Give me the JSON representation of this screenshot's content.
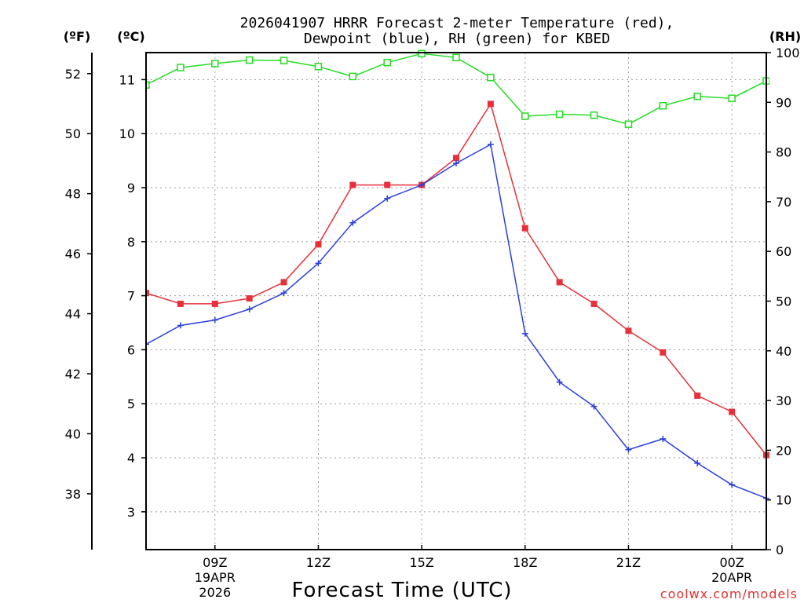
{
  "chart_data": {
    "type": "line",
    "title_line1": "2026041907 HRRR Forecast 2-meter Temperature (red),",
    "title_line2": "Dewpoint (blue), RH (green) for KBED",
    "xlabel": "Forecast Time (UTC)",
    "credit": "coolwx.com/models",
    "unit_labels": {
      "fahrenheit": "(ºF)",
      "celsius": "(ºC)",
      "rh": "(RH)"
    },
    "x": [
      7,
      8,
      9,
      10,
      11,
      12,
      13,
      14,
      15,
      16,
      17,
      18,
      19,
      20,
      21,
      22,
      23,
      24,
      25
    ],
    "x_ticks": [
      {
        "hour": 9,
        "label": "09Z",
        "line2": "19APR",
        "line3": "2026"
      },
      {
        "hour": 12,
        "label": "12Z",
        "line2": "",
        "line3": ""
      },
      {
        "hour": 15,
        "label": "15Z",
        "line2": "",
        "line3": ""
      },
      {
        "hour": 18,
        "label": "18Z",
        "line2": "",
        "line3": ""
      },
      {
        "hour": 21,
        "label": "21Z",
        "line2": "",
        "line3": ""
      },
      {
        "hour": 24,
        "label": "00Z",
        "line2": "20APR",
        "line3": ""
      }
    ],
    "xlim": [
      7,
      25
    ],
    "celsius_axis": {
      "ylim": [
        2.3,
        11.5
      ],
      "ticks": [
        3,
        4,
        5,
        6,
        7,
        8,
        9,
        10,
        11
      ]
    },
    "fahrenheit_ticks": [
      38,
      40,
      42,
      44,
      46,
      48,
      50,
      52
    ],
    "rh_axis": {
      "ylim": [
        0,
        100
      ],
      "ticks": [
        0,
        10,
        20,
        30,
        40,
        50,
        60,
        70,
        80,
        90,
        100
      ]
    },
    "series": [
      {
        "name": "Temperature",
        "axis": "celsius",
        "color": "#e8303a",
        "marker": "filled-square",
        "values": [
          7.05,
          6.85,
          6.85,
          6.95,
          7.25,
          7.95,
          9.05,
          9.05,
          9.05,
          9.55,
          10.55,
          8.25,
          7.25,
          6.85,
          6.35,
          5.95,
          5.15,
          4.85,
          4.05
        ]
      },
      {
        "name": "Dewpoint",
        "axis": "celsius",
        "color": "#2a3fe0",
        "marker": "plus",
        "values": [
          6.1,
          6.45,
          6.55,
          6.75,
          7.05,
          7.6,
          8.35,
          8.8,
          9.05,
          9.45,
          9.8,
          6.3,
          5.4,
          4.95,
          4.15,
          4.35,
          3.9,
          3.5,
          3.25
        ]
      },
      {
        "name": "RH",
        "axis": "rh",
        "color": "#22dd22",
        "marker": "open-square",
        "values": [
          93.5,
          97,
          97.8,
          98.5,
          98.4,
          97.2,
          95.2,
          98,
          99.8,
          99,
          95,
          87.2,
          87.6,
          87.4,
          85.6,
          89.3,
          91.2,
          90.8,
          94.3
        ]
      }
    ]
  }
}
